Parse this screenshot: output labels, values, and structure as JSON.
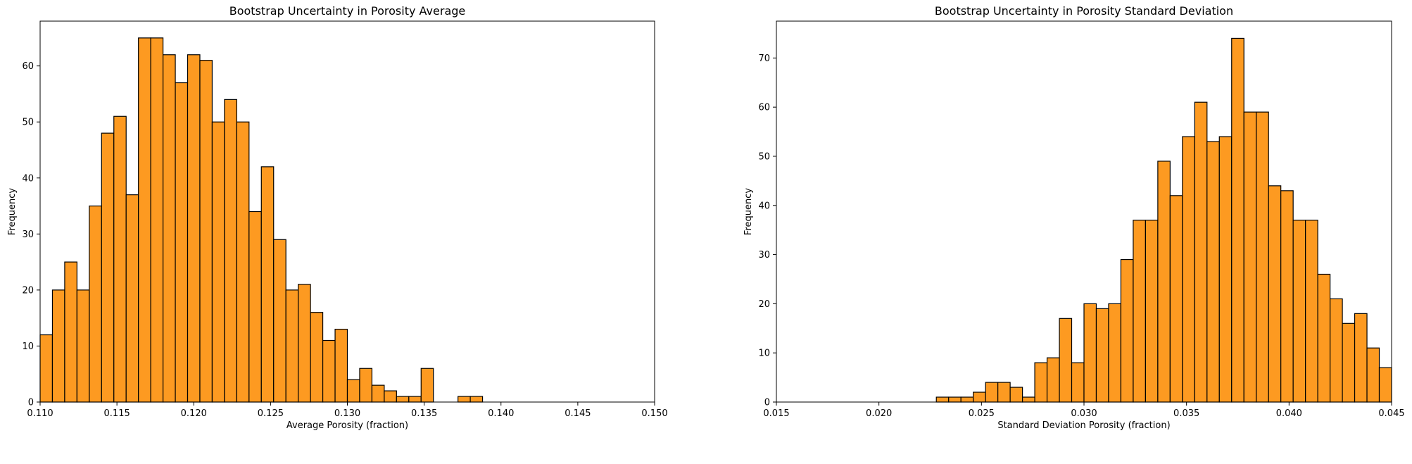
{
  "chart_data": [
    {
      "type": "bar",
      "title": "Bootstrap Uncertainty in Porosity Average",
      "xlabel": "Average Porosity (fraction)",
      "ylabel": "Frequency",
      "xlim": [
        0.11,
        0.15
      ],
      "ylim": [
        0,
        68
      ],
      "grid": false,
      "bar_color": "#fd9a21",
      "edge_color": "#000000",
      "bin_start": 0.11,
      "bin_width": 0.0008,
      "values": [
        12,
        20,
        25,
        20,
        35,
        48,
        51,
        37,
        65,
        65,
        62,
        57,
        62,
        61,
        50,
        54,
        50,
        34,
        42,
        29,
        20,
        21,
        16,
        11,
        13,
        4,
        6,
        3,
        2,
        1,
        1,
        6,
        0,
        0,
        1,
        1
      ],
      "xticks": [
        0.11,
        0.115,
        0.12,
        0.125,
        0.13,
        0.135,
        0.14,
        0.145,
        0.15
      ],
      "xtick_labels": [
        "0.110",
        "0.115",
        "0.120",
        "0.125",
        "0.130",
        "0.135",
        "0.140",
        "0.145",
        "0.150"
      ],
      "yticks": [
        0,
        10,
        20,
        30,
        40,
        50,
        60
      ],
      "ytick_labels": [
        "0",
        "10",
        "20",
        "30",
        "40",
        "50",
        "60"
      ]
    },
    {
      "type": "bar",
      "title": "Bootstrap Uncertainty in Porosity Standard Deviation",
      "xlabel": "Standard Deviation Porosity (fraction)",
      "ylabel": "Frequency",
      "xlim": [
        0.015,
        0.045
      ],
      "ylim": [
        0,
        77.5
      ],
      "grid": false,
      "bar_color": "#fd9a21",
      "edge_color": "#000000",
      "bin_start": 0.0228,
      "bin_width": 0.0006,
      "values": [
        1,
        1,
        1,
        2,
        4,
        4,
        3,
        1,
        8,
        9,
        17,
        8,
        20,
        19,
        20,
        29,
        37,
        37,
        49,
        42,
        54,
        61,
        53,
        54,
        74,
        59,
        59,
        44,
        43,
        37,
        37,
        26,
        21,
        16,
        18,
        11,
        7
      ],
      "xticks": [
        0.015,
        0.02,
        0.025,
        0.03,
        0.035,
        0.04,
        0.045
      ],
      "xtick_labels": [
        "0.015",
        "0.020",
        "0.025",
        "0.030",
        "0.035",
        "0.040",
        "0.045"
      ],
      "yticks": [
        0,
        10,
        20,
        30,
        40,
        50,
        60,
        70
      ],
      "ytick_labels": [
        "0",
        "10",
        "20",
        "30",
        "40",
        "50",
        "60",
        "70"
      ]
    }
  ]
}
